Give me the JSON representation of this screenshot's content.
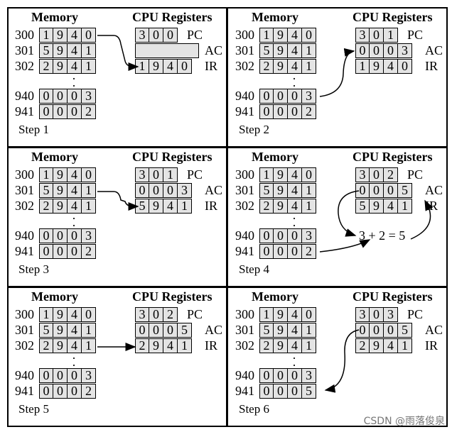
{
  "labels": {
    "memory": "Memory",
    "cpu_registers": "CPU Registers",
    "pc": "PC",
    "ac": "AC",
    "ir": "IR",
    "ellipsis": "·"
  },
  "addresses": [
    "300",
    "301",
    "302",
    "940",
    "941"
  ],
  "steps": [
    {
      "label": "Step 1",
      "memory": [
        "1 9 4 0",
        "5 9 4 1",
        "2 9 4 1",
        "0 0 0 3",
        "0 0 0 2"
      ],
      "pc": "3 0 0",
      "ac": "",
      "ir": "1 9 4 0"
    },
    {
      "label": "Step 2",
      "memory": [
        "1 9 4 0",
        "5 9 4 1",
        "2 9 4 1",
        "0 0 0 3",
        "0 0 0 2"
      ],
      "pc": "3 0 1",
      "ac": "0 0 0 3",
      "ir": "1 9 4 0"
    },
    {
      "label": "Step 3",
      "memory": [
        "1 9 4 0",
        "5 9 4 1",
        "2 9 4 1",
        "0 0 0 3",
        "0 0 0 2"
      ],
      "pc": "3 0 1",
      "ac": "0 0 0 3",
      "ir": "5 9 4 1"
    },
    {
      "label": "Step 4",
      "memory": [
        "1 9 4 0",
        "5 9 4 1",
        "2 9 4 1",
        "0 0 0 3",
        "0 0 0 2"
      ],
      "pc": "3 0 2",
      "ac": "0 0 0 5",
      "ir": "5 9 4 1",
      "sum": "3 + 2 = 5"
    },
    {
      "label": "Step 5",
      "memory": [
        "1 9 4 0",
        "5 9 4 1",
        "2 9 4 1",
        "0 0 0 3",
        "0 0 0 2"
      ],
      "pc": "3 0 2",
      "ac": "0 0 0 5",
      "ir": "2 9 4 1"
    },
    {
      "label": "Step 6",
      "memory": [
        "1 9 4 0",
        "5 9 4 1",
        "2 9 4 1",
        "0 0 0 3",
        "0 0 0 5"
      ],
      "pc": "3 0 3",
      "ac": "0 0 0 5",
      "ir": "2 9 4 1"
    }
  ],
  "watermark": "CSDN @雨落俊泉"
}
